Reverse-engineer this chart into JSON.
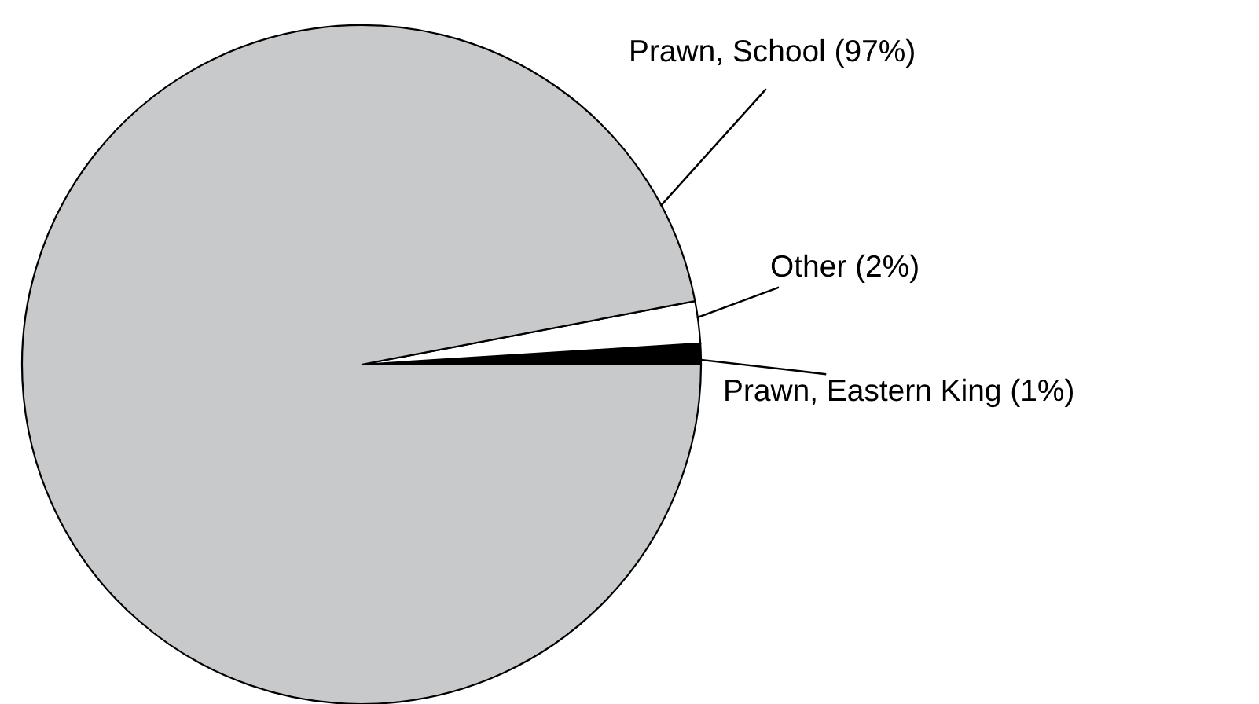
{
  "chart_data": {
    "type": "pie",
    "categories": [
      "Prawn, Eastern King (1%)",
      "Other (2%)",
      "Prawn, School (97%)"
    ],
    "values": [
      1,
      2,
      97
    ],
    "colors": [
      "#000000",
      "#ffffff",
      "#c8c9cb"
    ]
  }
}
